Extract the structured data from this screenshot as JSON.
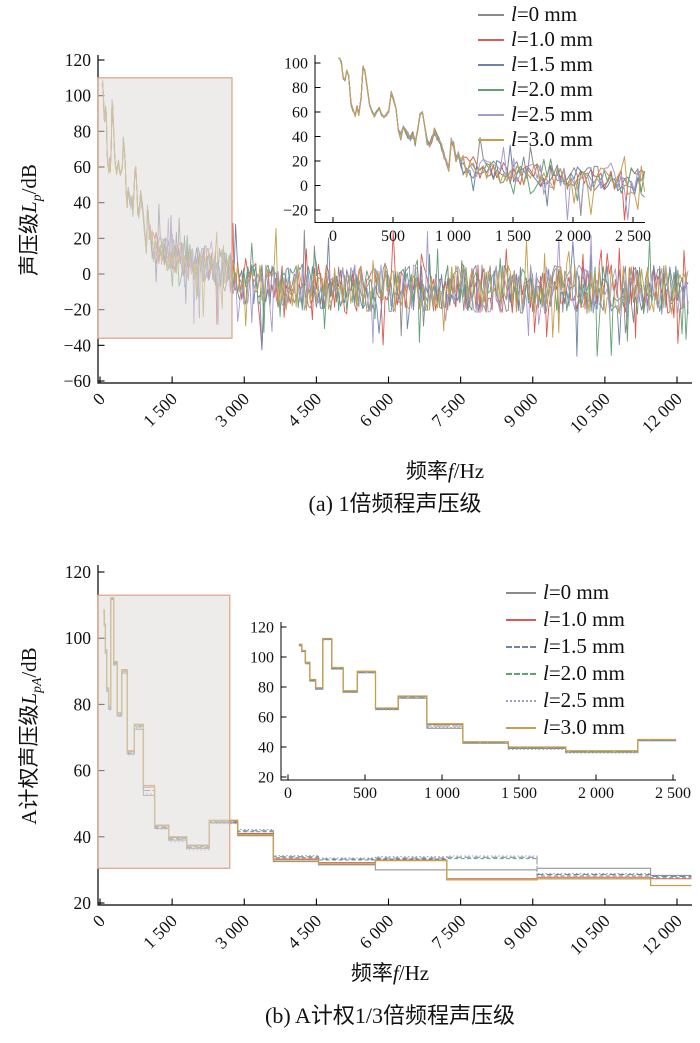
{
  "colors": {
    "highlight_border": "#e2a084",
    "highlight_fill": "rgba(224,220,217,0.55)",
    "axis": "#000000",
    "text": "#111111"
  },
  "series_legend": [
    {
      "id": "l0",
      "var": "l",
      "rest": "=0 mm",
      "color": "#8a8a8a",
      "legend_style_b": "solid",
      "dash_b": "",
      "width_b": 1.0
    },
    {
      "id": "l10",
      "var": "l",
      "rest": "=1.0 mm",
      "color": "#dc5b52",
      "legend_style_b": "solid",
      "dash_b": "",
      "width_b": 1.0
    },
    {
      "id": "l15",
      "var": "l",
      "rest": "=1.5 mm",
      "color": "#7183ab",
      "legend_style_b": "dashed",
      "dash_b": "6,3",
      "width_b": 1.0
    },
    {
      "id": "l20",
      "var": "l",
      "rest": "=2.0 mm",
      "color": "#63a077",
      "legend_style_b": "dashed",
      "dash_b": "4,2.5",
      "width_b": 1.0
    },
    {
      "id": "l25",
      "var": "l",
      "rest": "=2.5 mm",
      "color": "#a89cce",
      "legend_style_b": "dotted",
      "dash_b": "1.6,2.2",
      "width_b": 1.1
    },
    {
      "id": "l30",
      "var": "l",
      "rest": "=3.0 mm",
      "color": "#c4a04e",
      "legend_style_b": "solid",
      "dash_b": "",
      "width_b": 1.3
    }
  ],
  "panel_a": {
    "caption": "(a)  1倍频程声压级",
    "xlabel": {
      "prefix": "频率",
      "var": "f",
      "suffix": "/Hz"
    },
    "ylabel": {
      "prefix": "声压级",
      "var": "L",
      "sub": "p",
      "suffix": "/dB"
    },
    "chart_data": {
      "type": "line",
      "xlabel": "频率f/Hz",
      "ylabel": "声压级Lp/dB",
      "xlim": [
        0,
        12000
      ],
      "ylim": [
        -60,
        120
      ],
      "xticks": [
        0,
        1500,
        3000,
        4500,
        6000,
        7500,
        9000,
        10500,
        12000
      ],
      "xtick_labels": [
        "0",
        "1 500",
        "3 000",
        "4 500",
        "6 000",
        "7 500",
        "9 000",
        "10 500",
        "12 000"
      ],
      "yticks": [
        120,
        100,
        80,
        60,
        40,
        20,
        0,
        -20,
        -40,
        -60
      ],
      "ytick_labels": [
        "120",
        "100",
        "80",
        "60",
        "40",
        "20",
        "0",
        "−20",
        "−40",
        "−60"
      ],
      "legend": [
        "l=0 mm",
        "l=1.0 mm",
        "l=1.5 mm",
        "l=2.0 mm",
        "l=2.5 mm",
        "l=3.0 mm"
      ],
      "legend_position": "upper right",
      "grid": false,
      "highlight_box": {
        "x": [
          0,
          2745
        ],
        "y": [
          -36,
          110
        ]
      },
      "inset": {
        "xlim": [
          0,
          2600
        ],
        "ylim": [
          -30,
          106
        ],
        "xticks": [
          0,
          500,
          1000,
          1500,
          2000,
          2500
        ],
        "xtick_labels": [
          "0",
          "500",
          "1 000",
          "1 500",
          "2 000",
          "2 500"
        ],
        "yticks": [
          -20,
          0,
          20,
          40,
          60,
          80,
          100
        ],
        "ytick_labels": [
          "−20",
          "0",
          "20",
          "40",
          "60",
          "80",
          "100"
        ]
      },
      "note": "Six nearly-overlapping jagged spectra; values below are the shared base curve read from the figure, with small per-series spread.",
      "base_curve_anchors_f_dB": [
        [
          45,
          106
        ],
        [
          55,
          108
        ],
        [
          70,
          100
        ],
        [
          85,
          88
        ],
        [
          100,
          86
        ],
        [
          115,
          94
        ],
        [
          130,
          90
        ],
        [
          150,
          67
        ],
        [
          165,
          62
        ],
        [
          185,
          57
        ],
        [
          200,
          64
        ],
        [
          215,
          58
        ],
        [
          235,
          72
        ],
        [
          250,
          97
        ],
        [
          265,
          94
        ],
        [
          285,
          80
        ],
        [
          305,
          66
        ],
        [
          325,
          60
        ],
        [
          345,
          57
        ],
        [
          365,
          60
        ],
        [
          385,
          63
        ],
        [
          405,
          58
        ],
        [
          425,
          56
        ],
        [
          445,
          58
        ],
        [
          465,
          61
        ],
        [
          485,
          76
        ],
        [
          505,
          70
        ],
        [
          525,
          62
        ],
        [
          545,
          45
        ],
        [
          565,
          40
        ],
        [
          585,
          48
        ],
        [
          605,
          44
        ],
        [
          625,
          41
        ],
        [
          645,
          38
        ],
        [
          665,
          42
        ],
        [
          685,
          35
        ],
        [
          705,
          45
        ],
        [
          725,
          58
        ],
        [
          745,
          60
        ],
        [
          765,
          48
        ],
        [
          785,
          36
        ],
        [
          805,
          32
        ],
        [
          825,
          38
        ],
        [
          845,
          44
        ],
        [
          865,
          40
        ],
        [
          885,
          36
        ],
        [
          905,
          31
        ],
        [
          925,
          25
        ],
        [
          945,
          20
        ],
        [
          965,
          14
        ],
        [
          985,
          36
        ],
        [
          1005,
          34
        ],
        [
          1025,
          22
        ],
        [
          1045,
          26
        ],
        [
          1065,
          18
        ]
      ],
      "noise_mean_f_dB": [
        [
          1085,
          16
        ],
        [
          1400,
          11
        ],
        [
          1900,
          7
        ],
        [
          2400,
          4
        ],
        [
          2700,
          0
        ],
        [
          3000,
          -6
        ],
        [
          5000,
          -8
        ],
        [
          12250,
          -9
        ]
      ],
      "noise_amp_f_dB": [
        [
          1085,
          9
        ],
        [
          2000,
          10
        ],
        [
          2600,
          12
        ],
        [
          3000,
          13
        ],
        [
          12250,
          14
        ]
      ],
      "seed": 42
    }
  },
  "panel_b": {
    "caption": "(b)  A计权1/3倍频程声压级",
    "xlabel": {
      "prefix": "频率",
      "var": "f",
      "suffix": "/Hz"
    },
    "ylabel": {
      "prefix": "A计权声压级",
      "var": "L",
      "sub": "pA",
      "suffix": "/dB"
    },
    "chart_data": {
      "type": "step",
      "xlabel": "频率f/Hz",
      "ylabel": "A计权声压级LpA/dB",
      "xlim": [
        0,
        12000
      ],
      "ylim": [
        20,
        120
      ],
      "xticks": [
        0,
        1500,
        3000,
        4500,
        6000,
        7500,
        9000,
        10500,
        12000
      ],
      "xtick_labels": [
        "0",
        "1 500",
        "3 000",
        "4 500",
        "6 000",
        "7 500",
        "9 000",
        "10 500",
        "12 000"
      ],
      "yticks": [
        20,
        40,
        60,
        80,
        100,
        120
      ],
      "ytick_labels": [
        "20",
        "40",
        "60",
        "80",
        "100",
        "120"
      ],
      "legend_position": "upper right",
      "grid": false,
      "highlight_box": {
        "x": [
          0,
          2700
        ],
        "y": [
          30.5,
          113
        ]
      },
      "inset": {
        "xlim": [
          0,
          2520
        ],
        "ylim": [
          18,
          123
        ],
        "xticks": [
          0,
          500,
          1000,
          1500,
          2000,
          2500
        ],
        "xtick_labels": [
          "0",
          "500",
          "1 000",
          "1 500",
          "2 000",
          "2 500"
        ],
        "yticks": [
          20,
          40,
          60,
          80,
          100,
          120
        ],
        "ytick_labels": [
          "20",
          "40",
          "60",
          "80",
          "100",
          "120"
        ]
      },
      "first_band_edge_hz": 71,
      "bands_per_octave": 3,
      "centers": [
        80,
        100,
        125,
        160,
        200,
        250,
        315,
        400,
        500,
        630,
        800,
        1000,
        1250,
        1600,
        2000,
        2500,
        3150,
        4000,
        5000,
        6300,
        8000,
        10000,
        12500
      ],
      "series": [
        {
          "name": "l=0 mm",
          "values": [
            107.5,
            103.7,
            95.5,
            84.0,
            78.5,
            111.7,
            92.0,
            76.5,
            89.5,
            65.0,
            72.5,
            52.5,
            42.5,
            39.0,
            36.5,
            44.2,
            40.3,
            32.5,
            31.5,
            30.0,
            30.0,
            30.5,
            28.3
          ]
        },
        {
          "name": "l=1.0 mm",
          "values": [
            108.3,
            104.0,
            96.3,
            84.8,
            79.3,
            112.0,
            92.8,
            77.3,
            90.3,
            65.8,
            73.8,
            55.0,
            43.3,
            39.8,
            37.3,
            44.8,
            41.0,
            33.3,
            32.2,
            33.0,
            27.3,
            27.8,
            27.3
          ]
        },
        {
          "name": "l=1.5 mm",
          "values": [
            107.8,
            103.8,
            95.8,
            84.3,
            78.8,
            111.8,
            92.3,
            76.8,
            89.8,
            65.3,
            73.2,
            54.0,
            42.8,
            39.3,
            36.8,
            44.4,
            41.8,
            34.0,
            33.3,
            33.6,
            33.8,
            28.6,
            28.0
          ]
        },
        {
          "name": "l=2.0 mm",
          "values": [
            108.0,
            104.0,
            96.0,
            84.5,
            79.0,
            112.0,
            92.5,
            77.0,
            90.0,
            65.5,
            73.5,
            54.0,
            43.0,
            39.5,
            37.0,
            44.5,
            41.5,
            33.7,
            33.0,
            33.3,
            33.4,
            28.2,
            27.6
          ]
        },
        {
          "name": "l=2.5 mm",
          "values": [
            107.3,
            103.5,
            95.3,
            83.8,
            78.3,
            111.5,
            91.8,
            76.3,
            89.3,
            64.8,
            72.8,
            53.0,
            42.3,
            38.5,
            36.0,
            44.0,
            42.2,
            34.3,
            33.6,
            34.0,
            34.2,
            28.9,
            28.4
          ]
        },
        {
          "name": "l=3.0 mm",
          "values": [
            108.5,
            104.3,
            96.5,
            85.0,
            79.5,
            112.3,
            93.0,
            77.5,
            90.5,
            66.0,
            74.0,
            55.5,
            43.5,
            40.0,
            37.5,
            45.0,
            40.6,
            33.0,
            31.8,
            32.8,
            27.0,
            27.3,
            25.3
          ]
        }
      ]
    }
  }
}
